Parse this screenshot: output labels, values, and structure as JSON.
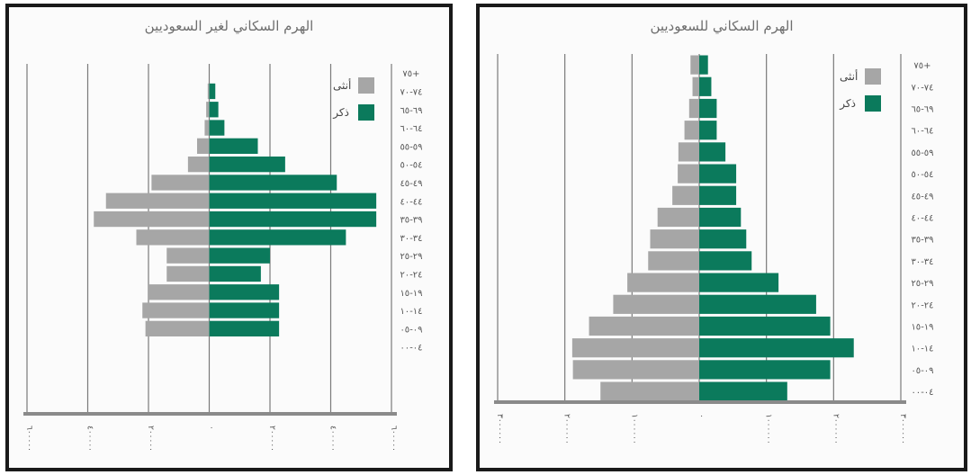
{
  "colors": {
    "male": "#0b7a5c",
    "female": "#a6a6a6",
    "axis": "#8a8a8a",
    "gridline": "#7a7a7a"
  },
  "chart_data": [
    {
      "type": "bar",
      "orientation": "horizontal-pyramid",
      "title": "الهرم السكاني لغير السعوديين",
      "categories": [
        "٠٤-٠٠",
        "٠٩-٠٥",
        "١٤-١٠",
        "١٩-١٥",
        "٢٤-٢٠",
        "٢٩-٢٥",
        "٣٤-٣٠",
        "٣٩-٣٥",
        "٤٤-٤٠",
        "٤٩-٤٥",
        "٥٤-٥٠",
        "٥٩-٥٥",
        "٦٤-٦٠",
        "٦٩-٦٥",
        "٧٤-٧٠",
        "٧٥+"
      ],
      "series": [
        {
          "name": "ذكر",
          "values": [
            0,
            230,
            230,
            230,
            170,
            200,
            450,
            550,
            550,
            420,
            250,
            160,
            50,
            30,
            20,
            0
          ]
        },
        {
          "name": "أنثى",
          "values": [
            0,
            210,
            220,
            200,
            140,
            140,
            240,
            380,
            340,
            190,
            70,
            40,
            15,
            10,
            5,
            0
          ]
        }
      ],
      "xlim": [
        -600,
        600
      ],
      "xtick_labels": [
        "٦٠٠٠٠٠",
        "٤٠٠٠٠٠",
        "٢٠٠٠٠٠",
        "٠",
        "٢٠٠٠٠٠",
        "٤٠٠٠٠٠",
        "٦٠٠٠٠٠"
      ],
      "legend": "top-right",
      "grid": true
    },
    {
      "type": "bar",
      "orientation": "horizontal-pyramid",
      "title": "الهرم السكاني للسعوديين",
      "categories": [
        "٠٤-٠٠",
        "٠٩-٠٥",
        "١٤-١٠",
        "١٩-١٥",
        "٢٤-٢٠",
        "٢٩-٢٥",
        "٣٤-٣٠",
        "٣٩-٣٥",
        "٤٤-٤٠",
        "٤٩-٤٥",
        "٥٤-٥٠",
        "٥٩-٥٥",
        "٦٤-٦٠",
        "٦٩-٦٥",
        "٧٤-٧٠",
        "٧٥+"
      ],
      "series": [
        {
          "name": "ذكر",
          "values": [
            1310,
            1950,
            2300,
            1950,
            1740,
            1180,
            780,
            700,
            620,
            550,
            550,
            390,
            260,
            260,
            180,
            130
          ]
        },
        {
          "name": "أنثى",
          "values": [
            1470,
            1880,
            1890,
            1640,
            1280,
            1070,
            760,
            730,
            620,
            400,
            320,
            310,
            220,
            150,
            100,
            130
          ]
        }
      ],
      "xlim": [
        -3000,
        3000
      ],
      "xtick_labels": [
        "٣٠٠٠٠٠٠",
        "٢٠٠٠٠٠٠",
        "١٠٠٠٠٠٠",
        "٠",
        "١٠٠٠٠٠٠",
        "٢٠٠٠٠٠٠",
        "٣٠٠٠٠٠٠"
      ],
      "legend": "top-right",
      "grid": true
    }
  ]
}
